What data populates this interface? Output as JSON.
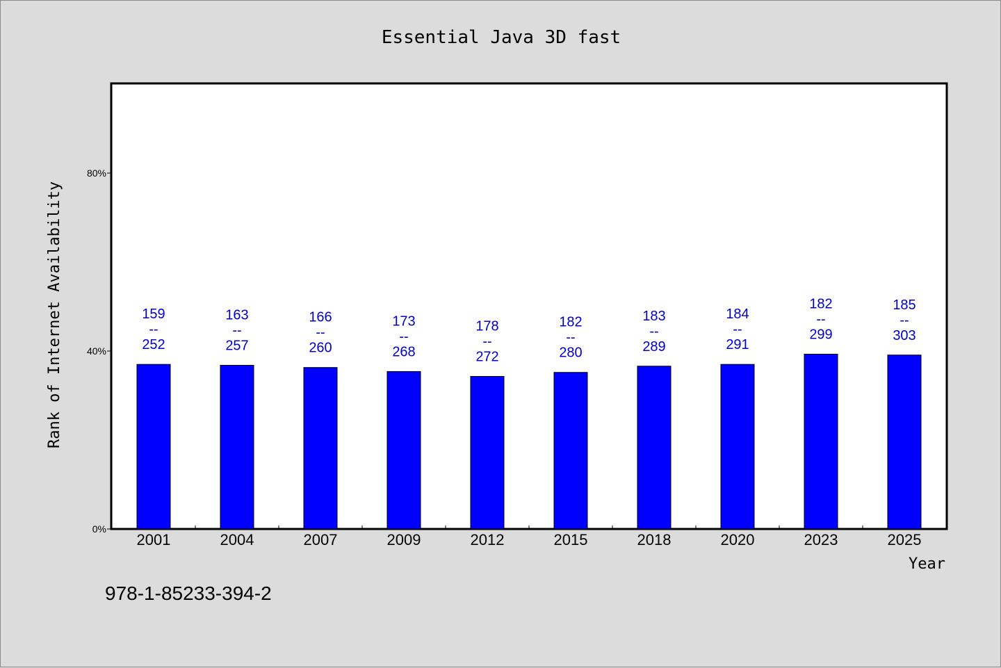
{
  "chart_data": {
    "type": "bar",
    "title": "Essential Java 3D fast",
    "xlabel": "Year",
    "ylabel": "Rank of Internet Availability",
    "categories": [
      "2001",
      "2004",
      "2007",
      "2009",
      "2012",
      "2015",
      "2018",
      "2020",
      "2023",
      "2025"
    ],
    "series": [
      {
        "values": [
          37.0,
          36.8,
          36.3,
          35.4,
          34.3,
          35.2,
          36.6,
          37.0,
          39.3,
          39.1
        ]
      }
    ],
    "bar_labels": [
      {
        "top": "159",
        "sep": "--",
        "bottom": "252"
      },
      {
        "top": "163",
        "sep": "--",
        "bottom": "257"
      },
      {
        "top": "166",
        "sep": "--",
        "bottom": "260"
      },
      {
        "top": "173",
        "sep": "--",
        "bottom": "268"
      },
      {
        "top": "178",
        "sep": "--",
        "bottom": "272"
      },
      {
        "top": "182",
        "sep": "--",
        "bottom": "280"
      },
      {
        "top": "183",
        "sep": "--",
        "bottom": "289"
      },
      {
        "top": "184",
        "sep": "--",
        "bottom": "291"
      },
      {
        "top": "182",
        "sep": "--",
        "bottom": "299"
      },
      {
        "top": "185",
        "sep": "--",
        "bottom": "303"
      }
    ],
    "yticks": [
      {
        "value": 0,
        "label": "0%"
      },
      {
        "value": 40,
        "label": "40%"
      },
      {
        "value": 80,
        "label": "80%"
      }
    ],
    "ylim": [
      0,
      100
    ],
    "grid": false,
    "bar_color": "#0000ff",
    "label_color": "#0000cc"
  },
  "footer": {
    "isbn": "978-1-85233-394-2"
  }
}
